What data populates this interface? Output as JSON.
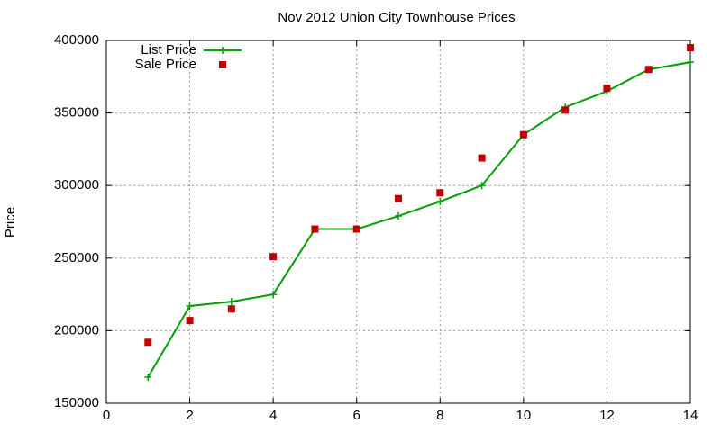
{
  "chart_data": {
    "type": "line",
    "title": "Nov 2012 Union City Townhouse Prices",
    "ylabel": "Price",
    "x": [
      1,
      2,
      3,
      4,
      5,
      6,
      7,
      8,
      9,
      10,
      11,
      12,
      13,
      14
    ],
    "series": [
      {
        "name": "List Price",
        "color": "#00a000",
        "style": "linespoints",
        "values": [
          168000,
          217000,
          220000,
          225000,
          270000,
          270000,
          279000,
          289000,
          300000,
          335000,
          354000,
          365000,
          380000,
          385000
        ]
      },
      {
        "name": "Sale Price",
        "color": "#c00000",
        "style": "points",
        "values": [
          192000,
          207000,
          215000,
          251000,
          270000,
          270000,
          291000,
          295000,
          319000,
          335000,
          352000,
          367000,
          380000,
          395000
        ]
      }
    ],
    "xlim": [
      0,
      14
    ],
    "xticks": [
      0,
      2,
      4,
      6,
      8,
      10,
      12,
      14
    ],
    "ylim": [
      150000,
      400000
    ],
    "yticks": [
      150000,
      200000,
      250000,
      300000,
      350000,
      400000
    ],
    "grid": true,
    "legend": "top-left"
  }
}
